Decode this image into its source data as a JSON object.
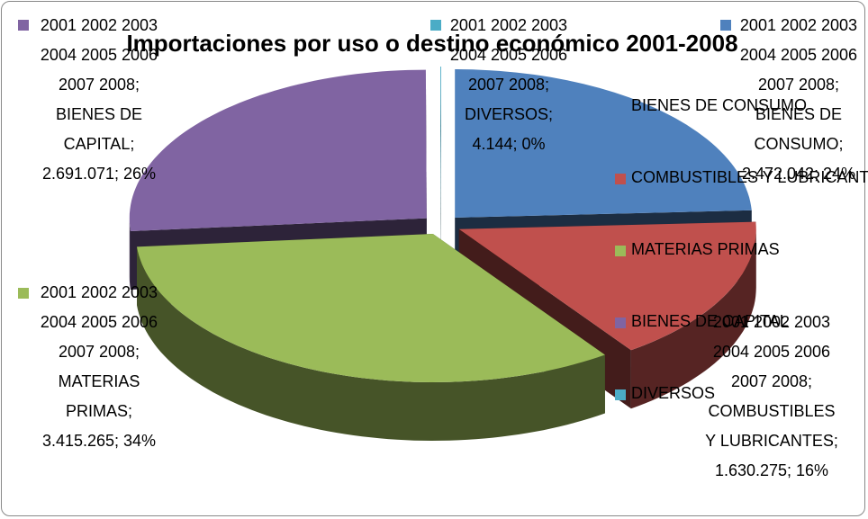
{
  "chart_data": {
    "type": "pie",
    "title": "Importaciones por uso o destino económico 2001-2008",
    "series_name": "2001 2002 2003 2004 2005 2006 2007 2008",
    "categories": [
      "BIENES DE CONSUMO",
      "COMBUSTIBLES Y LUBRICANTES",
      "MATERIAS PRIMAS",
      "BIENES DE CAPITAL",
      "DIVERSOS"
    ],
    "values": [
      2472042,
      1630275,
      3415265,
      2691071,
      4144
    ],
    "data_labels": [
      "2001 2002 2003 2004 2005 2006 2007 2008; BIENES DE CONSUMO; 2.472.042; 24%",
      "2001 2002 2003 2004 2005 2006 2007 2008; COMBUSTIBLES Y LUBRICANTES; 1.630.275; 16%",
      "2001 2002 2003 2004 2005 2006 2007 2008; MATERIAS PRIMAS; 3.415.265; 34%",
      "2001 2002 2003 2004 2005 2006 2007 2008; BIENES DE CAPITAL; 2.691.071; 26%",
      "2001 2002 2003 2004 2005 2006 2007 2008; DIVERSOS; 4.144; 0%"
    ],
    "colors": [
      "#4f81bd",
      "#c0504d",
      "#9bbb59",
      "#8064a2",
      "#4bacc6"
    ],
    "legend": "right"
  }
}
